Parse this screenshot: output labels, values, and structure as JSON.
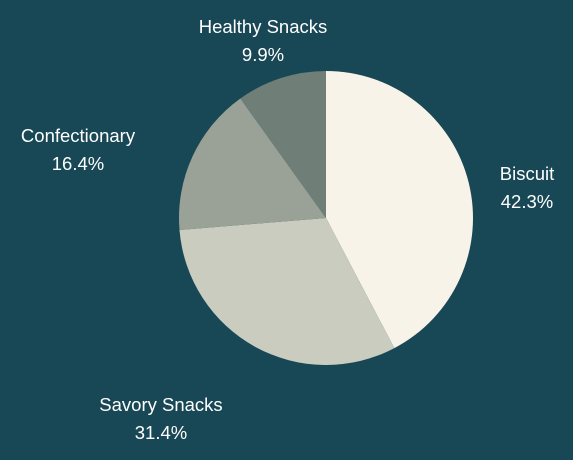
{
  "chart_data": {
    "type": "pie",
    "title": "",
    "slices": [
      {
        "label": "Biscuit",
        "value": 42.3,
        "value_label": "42.3%",
        "color": "#F7F3E8"
      },
      {
        "label": "Savory Snacks",
        "value": 31.4,
        "value_label": "31.4%",
        "color": "#CACCC0"
      },
      {
        "label": "Confectionary",
        "value": 16.4,
        "value_label": "16.4%",
        "color": "#9AA298"
      },
      {
        "label": "Healthy Snacks",
        "value": 9.9,
        "value_label": "9.9%",
        "color": "#6F7F77"
      }
    ],
    "start_angle": "12 o'clock",
    "direction": "clockwise",
    "legend": "none",
    "background_color": "#184855",
    "label_color": "#FFFFFF"
  }
}
